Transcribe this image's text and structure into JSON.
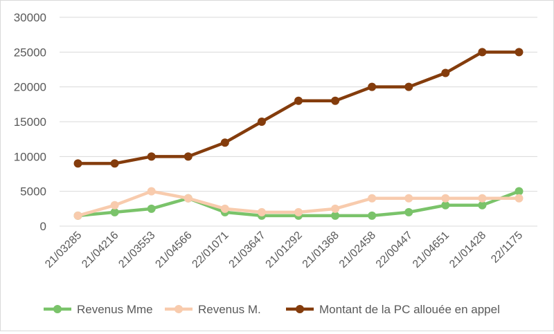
{
  "chart_data": {
    "type": "line",
    "title": "",
    "xlabel": "",
    "ylabel": "",
    "ylim": [
      0,
      30000
    ],
    "yticks": [
      0,
      5000,
      10000,
      15000,
      20000,
      25000,
      30000
    ],
    "grid": "horizontal",
    "legend_position": "bottom",
    "categories": [
      "21/03285",
      "21/04216",
      "21/03553",
      "21/04566",
      "22/01071",
      "21/03647",
      "21/01292",
      "21/01368",
      "21/02458",
      "22/00447",
      "21/04651",
      "21/01428",
      "22/1175"
    ],
    "series": [
      {
        "name": "Revenus Mme",
        "color": "#7ac36a",
        "values": [
          1500,
          2000,
          2500,
          4000,
          2000,
          1500,
          1500,
          1500,
          1500,
          2000,
          3000,
          3000,
          5000
        ]
      },
      {
        "name": "Revenus M.",
        "color": "#f8cbad",
        "values": [
          1500,
          3000,
          5000,
          4000,
          2500,
          2000,
          2000,
          2500,
          4000,
          4000,
          4000,
          4000,
          4000
        ]
      },
      {
        "name": "Montant de la PC allouée en appel",
        "color": "#843c0c",
        "values": [
          9000,
          9000,
          10000,
          10000,
          12000,
          15000,
          18000,
          18000,
          20000,
          20000,
          22000,
          25000,
          25000
        ]
      }
    ]
  }
}
